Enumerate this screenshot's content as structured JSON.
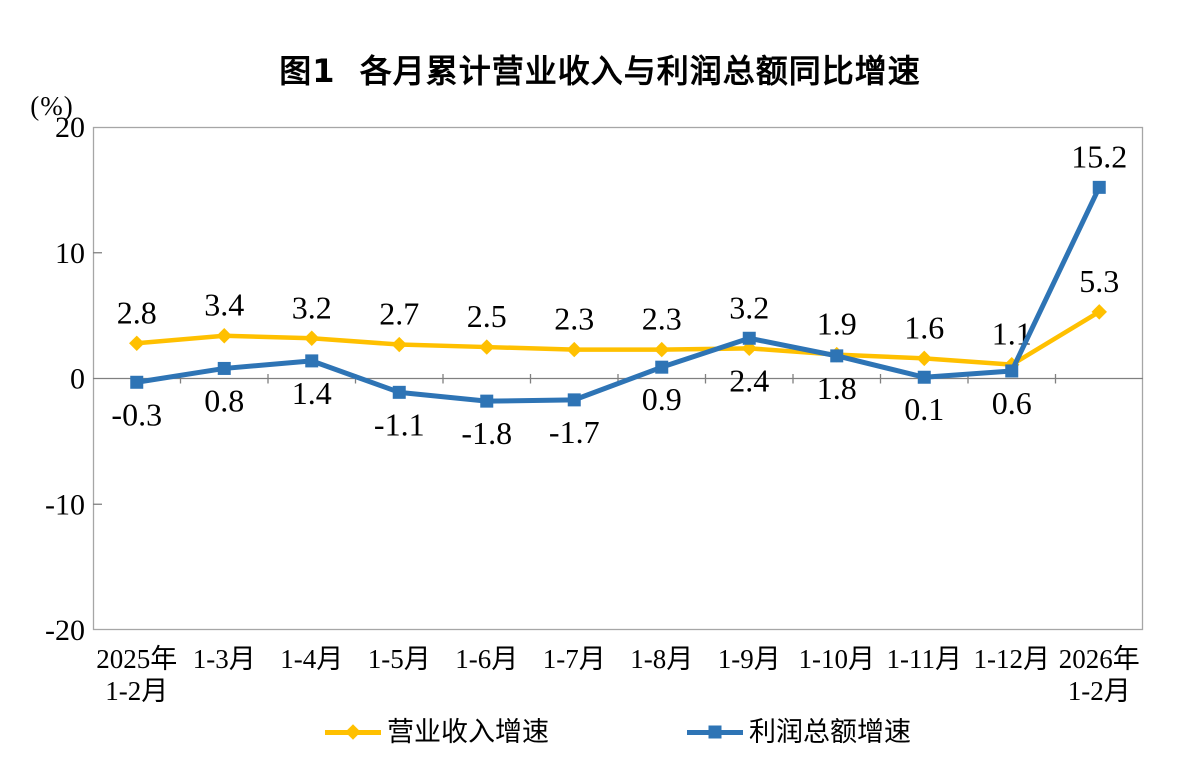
{
  "title": "图1  各月累计营业收入与利润总额同比增速",
  "axis_unit_label": "(%)",
  "legend": {
    "revenue_label": "营业收入增速",
    "profit_label": "利润总额增速"
  },
  "colors": {
    "revenue": "#FFC000",
    "profit": "#2E74B5",
    "axis": "#808080",
    "plot_border": "#A6A6A6",
    "text": "#000000"
  },
  "chart_data": {
    "type": "line",
    "title": "图1  各月累计营业收入与利润总额同比增速",
    "ylabel": "(%)",
    "ylim": [
      -20,
      20
    ],
    "yticks": [
      20,
      10,
      0,
      -10,
      -20
    ],
    "grid": false,
    "legend_position": "bottom",
    "categories": [
      [
        "2025年",
        "1-2月"
      ],
      [
        "1-3月"
      ],
      [
        "1-4月"
      ],
      [
        "1-5月"
      ],
      [
        "1-6月"
      ],
      [
        "1-7月"
      ],
      [
        "1-8月"
      ],
      [
        "1-9月"
      ],
      [
        "1-10月"
      ],
      [
        "1-11月"
      ],
      [
        "1-12月"
      ],
      [
        "2026年",
        "1-2月"
      ]
    ],
    "series": [
      {
        "name": "营业收入增速",
        "color": "#FFC000",
        "marker": "diamond",
        "values": [
          2.8,
          3.4,
          3.2,
          2.7,
          2.5,
          2.3,
          2.3,
          2.4,
          1.9,
          1.6,
          1.1,
          5.3
        ],
        "label_pos": [
          "above",
          "above",
          "above",
          "above",
          "above",
          "above",
          "above",
          "below",
          "above",
          "above",
          "above",
          "above"
        ]
      },
      {
        "name": "利润总额增速",
        "color": "#2E74B5",
        "marker": "square",
        "values": [
          -0.3,
          0.8,
          1.4,
          -1.1,
          -1.8,
          -1.7,
          0.9,
          3.2,
          1.8,
          0.1,
          0.6,
          15.2
        ],
        "label_pos": [
          "below",
          "below",
          "below",
          "below",
          "below",
          "below",
          "below",
          "above",
          "below",
          "below",
          "below",
          "above"
        ]
      }
    ]
  }
}
